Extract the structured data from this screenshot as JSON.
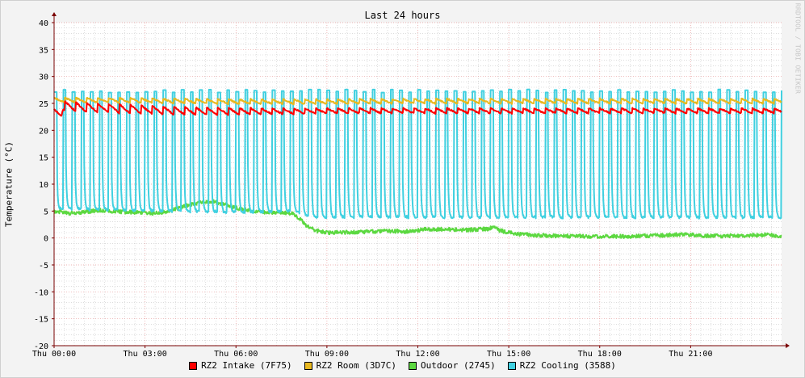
{
  "chart_data": {
    "type": "line",
    "title": "Last 24 hours",
    "ylabel": "Temperature (°C)",
    "xlabel": "",
    "ylim": [
      -20,
      40
    ],
    "yticks": [
      -20,
      -15,
      -10,
      -5,
      0,
      5,
      10,
      15,
      20,
      25,
      30,
      35,
      40
    ],
    "xlim_hours": [
      0,
      24
    ],
    "xticks": [
      {
        "label": "Thu 00:00",
        "hour": 0
      },
      {
        "label": "Thu 03:00",
        "hour": 3
      },
      {
        "label": "Thu 06:00",
        "hour": 6
      },
      {
        "label": "Thu 09:00",
        "hour": 9
      },
      {
        "label": "Thu 12:00",
        "hour": 12
      },
      {
        "label": "Thu 15:00",
        "hour": 15
      },
      {
        "label": "Thu 18:00",
        "hour": 18
      },
      {
        "label": "Thu 21:00",
        "hour": 21
      }
    ],
    "grid": true,
    "legend_position": "bottom",
    "watermark": "RRDTOOL / TOBI OETIKER",
    "colors": {
      "background": "#f3f3f3",
      "canvas": "#ffffff",
      "grid_major": "#e69a9a",
      "grid_minor": "#c8c8c8",
      "axis": "#7a0000"
    },
    "series": [
      {
        "name": "RZ2 Intake (7F75)",
        "color": "#ff0000",
        "pattern": "sawtooth",
        "cycle_hours": 0.36,
        "points": [
          [
            0.0,
            23.0
          ],
          [
            0.24,
            23.0
          ],
          [
            0.3,
            24.5
          ],
          [
            1.0,
            24.2
          ],
          [
            2.0,
            24.0
          ],
          [
            3.0,
            23.8
          ],
          [
            4.0,
            23.6
          ],
          [
            5.0,
            23.5
          ],
          [
            6.0,
            23.5
          ],
          [
            7.0,
            23.5
          ],
          [
            8.0,
            23.5
          ],
          [
            9.0,
            23.6
          ],
          [
            12.0,
            23.6
          ],
          [
            15.0,
            23.6
          ],
          [
            18.0,
            23.6
          ],
          [
            21.0,
            23.6
          ],
          [
            24.0,
            23.6
          ]
        ],
        "amplitude": [
          [
            0.0,
            1.8
          ],
          [
            3.0,
            1.6
          ],
          [
            6.0,
            1.3
          ],
          [
            8.0,
            1.0
          ],
          [
            24.0,
            0.9
          ]
        ]
      },
      {
        "name": "RZ2 Room (3D7C)",
        "color": "#e8b820",
        "pattern": "sawtooth",
        "cycle_hours": 0.36,
        "points": [
          [
            0.0,
            25.6
          ],
          [
            3.0,
            25.5
          ],
          [
            6.0,
            25.3
          ],
          [
            9.0,
            25.3
          ],
          [
            12.0,
            25.4
          ],
          [
            15.0,
            25.4
          ],
          [
            18.0,
            25.4
          ],
          [
            21.0,
            25.4
          ],
          [
            24.0,
            25.4
          ]
        ],
        "amplitude": [
          [
            0.0,
            0.9
          ],
          [
            24.0,
            0.9
          ]
        ]
      },
      {
        "name": "Outdoor (2745)",
        "color": "#5cd840",
        "pattern": "noise",
        "points": [
          [
            0.0,
            5.0
          ],
          [
            0.5,
            4.6
          ],
          [
            1.0,
            4.8
          ],
          [
            1.5,
            5.2
          ],
          [
            2.0,
            4.9
          ],
          [
            2.5,
            4.8
          ],
          [
            3.0,
            4.7
          ],
          [
            3.5,
            4.6
          ],
          [
            4.0,
            5.4
          ],
          [
            4.5,
            6.2
          ],
          [
            4.9,
            6.6
          ],
          [
            5.2,
            6.8
          ],
          [
            5.6,
            6.3
          ],
          [
            6.0,
            5.6
          ],
          [
            6.5,
            5.0
          ],
          [
            7.0,
            4.8
          ],
          [
            7.5,
            4.7
          ],
          [
            7.9,
            4.5
          ],
          [
            8.1,
            3.6
          ],
          [
            8.3,
            2.4
          ],
          [
            8.6,
            1.4
          ],
          [
            9.0,
            1.0
          ],
          [
            10.0,
            1.1
          ],
          [
            11.0,
            1.3
          ],
          [
            11.8,
            1.2
          ],
          [
            12.2,
            1.6
          ],
          [
            13.0,
            1.6
          ],
          [
            13.6,
            1.5
          ],
          [
            14.3,
            1.7
          ],
          [
            14.5,
            2.0
          ],
          [
            14.7,
            1.4
          ],
          [
            15.2,
            0.8
          ],
          [
            15.6,
            0.6
          ],
          [
            16.5,
            0.4
          ],
          [
            18.0,
            0.3
          ],
          [
            19.0,
            0.3
          ],
          [
            20.0,
            0.5
          ],
          [
            20.8,
            0.7
          ],
          [
            21.5,
            0.4
          ],
          [
            22.5,
            0.4
          ],
          [
            23.4,
            0.6
          ],
          [
            24.0,
            0.4
          ]
        ]
      },
      {
        "name": "RZ2 Cooling (3588)",
        "color": "#40d0e0",
        "pattern": "spike_cycle",
        "cycle_hours": 0.3,
        "spike_width_hours": 0.09,
        "peak": 27.6,
        "baseline": [
          [
            0.0,
            5.5
          ],
          [
            2.0,
            5.2
          ],
          [
            4.0,
            5.0
          ],
          [
            6.0,
            4.8
          ],
          [
            8.0,
            5.0
          ],
          [
            8.2,
            4.4
          ],
          [
            8.5,
            3.9
          ],
          [
            24.0,
            3.8
          ]
        ]
      }
    ]
  }
}
